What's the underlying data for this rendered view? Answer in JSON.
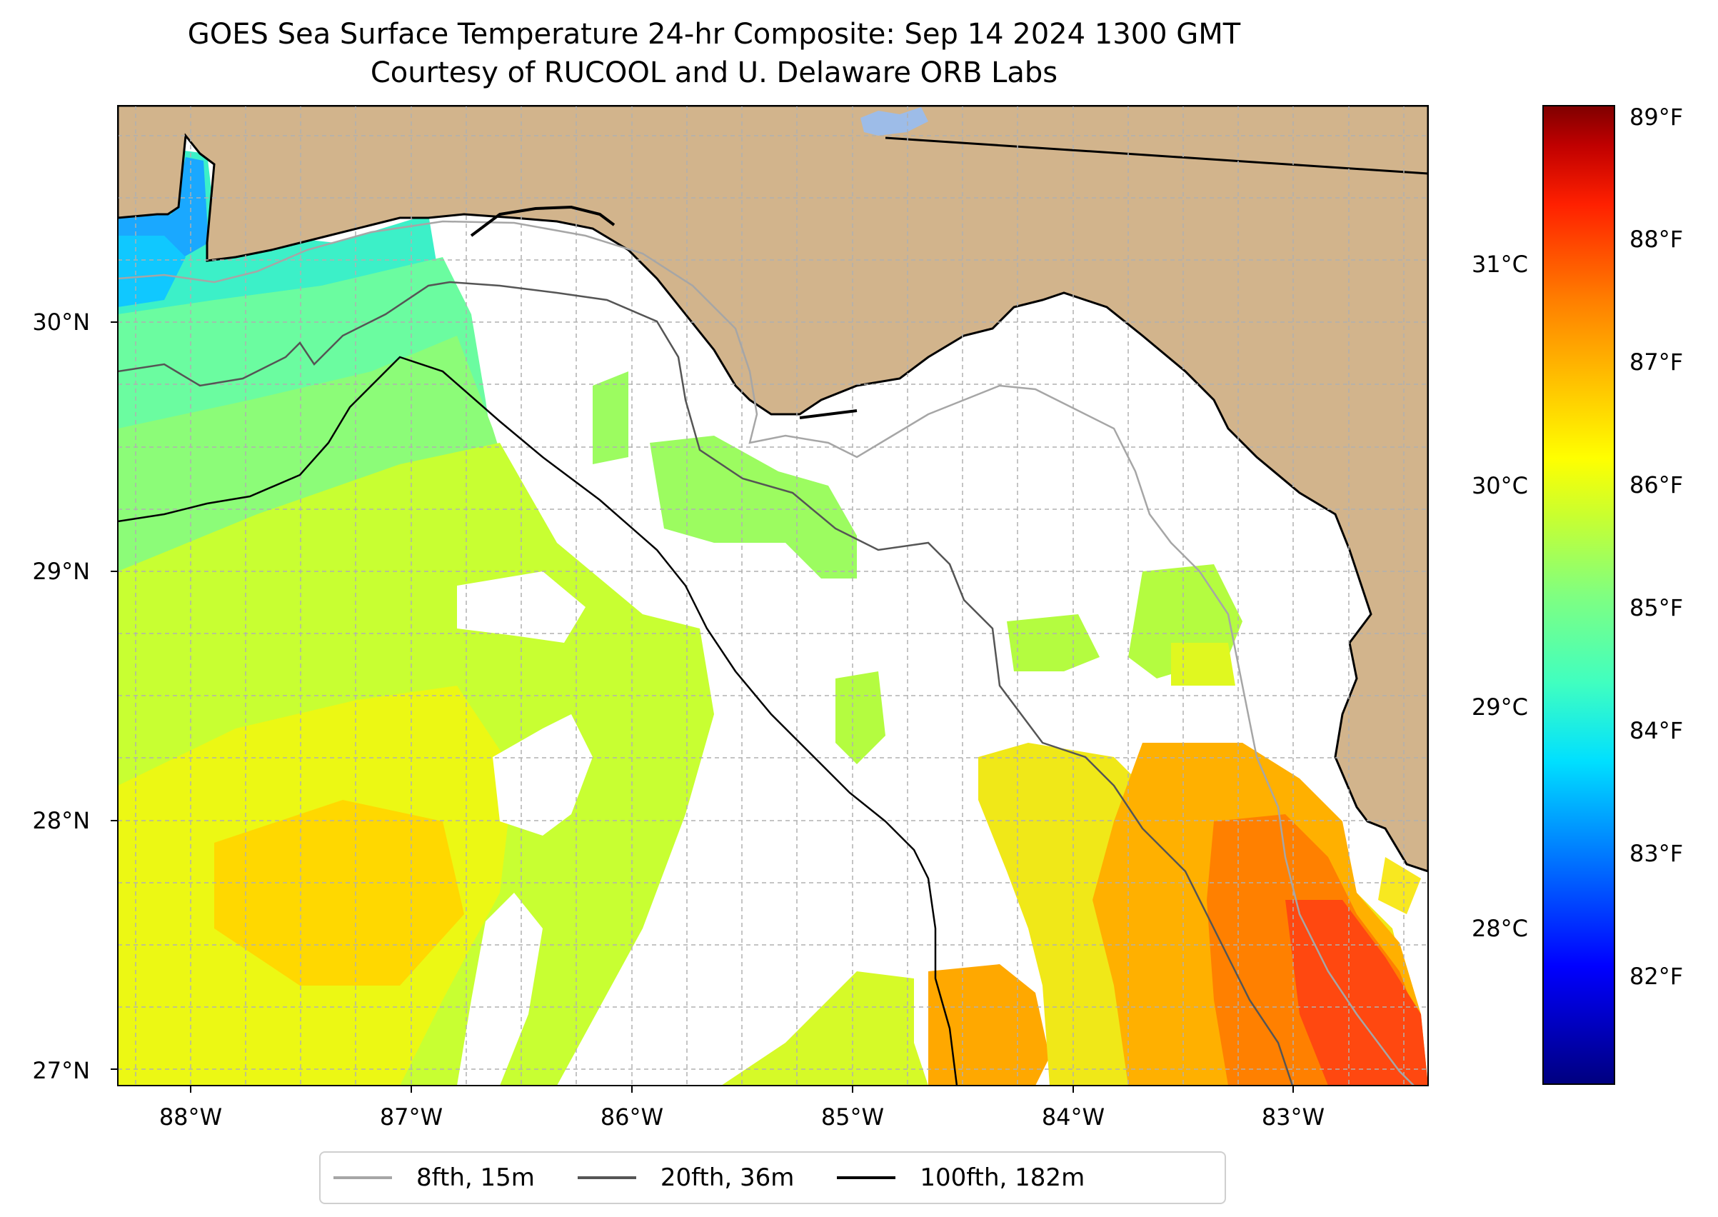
{
  "title": {
    "line1": "GOES Sea Surface Temperature 24-hr Composite: Sep 14 2024 1300 GMT",
    "line2": "Courtesy of RUCOOL and U. Delaware ORB Labs"
  },
  "axes": {
    "lat_ticks": [
      "30°N",
      "29°N",
      "28°N",
      "27°N"
    ],
    "lon_ticks": [
      "88°W",
      "87°W",
      "86°W",
      "85°W",
      "84°W",
      "83°W"
    ]
  },
  "colorbar": {
    "fahrenheit_ticks": [
      "89°F",
      "88°F",
      "87°F",
      "86°F",
      "85°F",
      "84°F",
      "83°F",
      "82°F"
    ],
    "celsius_ticks": [
      "31°C",
      "30°C",
      "29°C",
      "28°C"
    ],
    "colors": [
      "#000080",
      "#0000ff",
      "#00e0ff",
      "#80ff80",
      "#ffff00",
      "#ff8000",
      "#ff2000",
      "#800000"
    ]
  },
  "legend": [
    {
      "label": "8fth, 15m",
      "color": "#a6a6a6"
    },
    {
      "label": "20fth, 36m",
      "color": "#555555"
    },
    {
      "label": "100fth, 182m",
      "color": "#000000"
    }
  ],
  "colors": {
    "land": "#d2b48c",
    "ocean_nodata": "#ffffff",
    "gridline": "#b0b0b0"
  }
}
